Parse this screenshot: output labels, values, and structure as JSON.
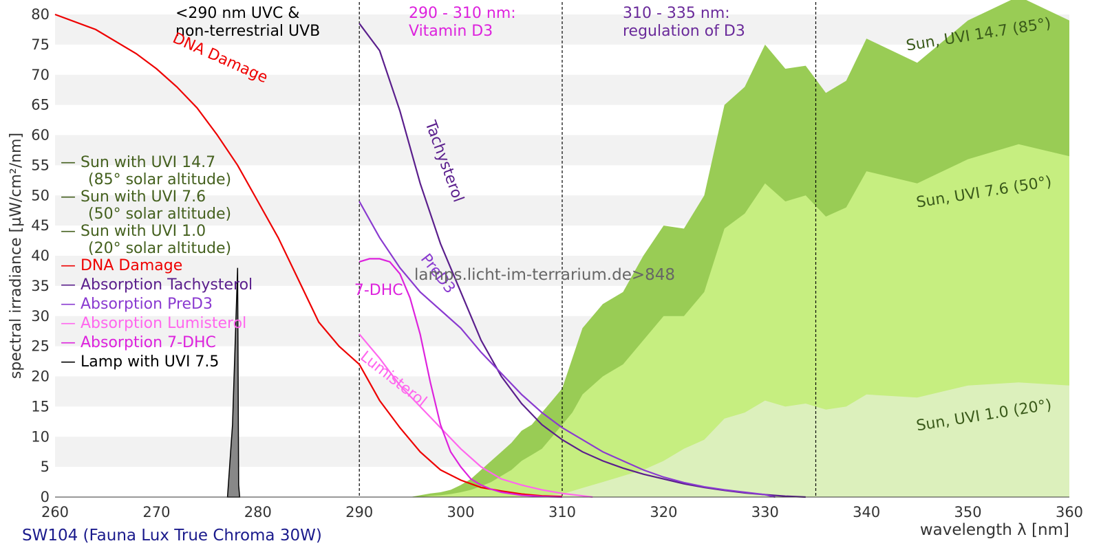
{
  "chart_data": {
    "type": "line",
    "title": "",
    "xlabel": "wavelength λ [nm]",
    "ylabel": "spectral irradiance [µW/cm²/nm]",
    "xlim": [
      260,
      360
    ],
    "ylim": [
      0,
      80
    ],
    "x_ticks": [
      "260",
      "270",
      "280",
      "290",
      "300",
      "310",
      "320",
      "330",
      "340",
      "350",
      "360"
    ],
    "y_ticks": [
      "0",
      "5",
      "10",
      "15",
      "20",
      "25",
      "30",
      "35",
      "40",
      "45",
      "50",
      "55",
      "60",
      "65",
      "70",
      "75",
      "80"
    ],
    "grid": "horizontal alternating bands",
    "lamp_name": "SW104 (Fauna Lux True Chroma 30W)",
    "watermark": "lamps.licht-im-terrarium.de>848",
    "zones": [
      {
        "x": 290,
        "label_line1": "<290 nm UVC &",
        "label_line2": "non-terrestrial UVB",
        "color": "#000000"
      },
      {
        "x": 310,
        "label_line1": "290 - 310 nm:",
        "label_line2": "Vitamin D3",
        "color": "#dd22dd"
      },
      {
        "x": 335,
        "label_line1": "310 - 335 nm:",
        "label_line2": "regulation of D3",
        "color": "#6a2a9a"
      }
    ],
    "legend": [
      {
        "line1": "— Sun with UVI 14.7",
        "line2": "(85° solar altitude)",
        "color": "#44601e"
      },
      {
        "line1": "— Sun with UVI 7.6",
        "line2": "(50° solar altitude)",
        "color": "#44601e"
      },
      {
        "line1": "— Sun with UVI 1.0",
        "line2": "(20° solar altitude)",
        "color": "#44601e"
      },
      {
        "line1": "— DNA Damage",
        "line2": "",
        "color": "#ee0000"
      },
      {
        "line1": "— Absorption Tachysterol",
        "line2": "",
        "color": "#5a1e8c"
      },
      {
        "line1": "— Absorption PreD3",
        "line2": "",
        "color": "#8a3ad0"
      },
      {
        "line1": "— Absorption Lumisterol",
        "line2": "",
        "color": "#ff66ee"
      },
      {
        "line1": "— Absorption 7-DHC",
        "line2": "",
        "color": "#dd22dd"
      },
      {
        "line1": "— Lamp with UVI 7.5",
        "line2": "",
        "color": "#000000"
      }
    ],
    "series": [
      {
        "name": "Sun, UVI 14.7 (85°)",
        "kind": "area",
        "color": "#99cc55",
        "label_x": 344,
        "label_y": 74,
        "x": [
          293,
          294,
          295,
          296,
          297,
          298,
          299,
          300,
          301,
          302,
          303,
          304,
          305,
          306,
          307,
          308,
          309,
          310,
          311,
          312,
          314,
          316,
          318,
          320,
          322,
          324,
          326,
          328,
          330,
          332,
          334,
          336,
          338,
          340,
          345,
          350,
          355,
          360
        ],
        "values": [
          0,
          0,
          0,
          0.3,
          0.6,
          0.8,
          1.2,
          2,
          3,
          4.5,
          6,
          7.5,
          9,
          11,
          12,
          14,
          16,
          18,
          23,
          28,
          32,
          34,
          40,
          45,
          44.5,
          50,
          65,
          68,
          75,
          71,
          71.5,
          67,
          69,
          76,
          72,
          79,
          83,
          79
        ]
      },
      {
        "name": "Sun, UVI 7.6 (50°)",
        "kind": "area",
        "color": "#c6ee80",
        "label_x": 345,
        "label_y": 48,
        "x": [
          296,
          297,
          298,
          299,
          300,
          301,
          302,
          303,
          304,
          305,
          306,
          307,
          308,
          309,
          310,
          311,
          312,
          314,
          316,
          318,
          320,
          322,
          324,
          326,
          328,
          330,
          332,
          334,
          336,
          338,
          340,
          345,
          350,
          355,
          360
        ],
        "values": [
          0,
          0.2,
          0.3,
          0.5,
          0.8,
          1.2,
          1.8,
          2.5,
          3.5,
          4.5,
          6,
          7,
          8,
          10,
          12,
          14,
          17,
          20,
          22,
          26,
          30,
          30,
          34,
          44.5,
          47,
          52,
          49,
          50,
          46.5,
          48,
          54,
          52,
          56,
          58.5,
          56.5
        ]
      },
      {
        "name": "Sun, UVI 1.0 (20°)",
        "kind": "area",
        "color": "#dcf0bc",
        "label_x": 345,
        "label_y": 11,
        "x": [
          304,
          306,
          308,
          310,
          312,
          314,
          316,
          318,
          320,
          322,
          324,
          326,
          328,
          330,
          332,
          334,
          336,
          338,
          340,
          345,
          350,
          355,
          360
        ],
        "values": [
          0,
          0.1,
          0.2,
          0.5,
          1.5,
          2.5,
          3.5,
          4.5,
          6,
          8,
          9.5,
          13,
          14,
          16,
          15,
          15.5,
          14.5,
          15,
          17,
          16.5,
          18.5,
          19,
          18.5
        ]
      },
      {
        "name": "DNA Damage",
        "kind": "line",
        "color": "#ee0000",
        "label": "DNA Damage",
        "label_x": 271.5,
        "label_y": 75.5,
        "label_angle": 24,
        "x": [
          260,
          264,
          268,
          270,
          272,
          274,
          276,
          278,
          280,
          282,
          284,
          286,
          288,
          290,
          292,
          294,
          296,
          298,
          300,
          302,
          304,
          306,
          308,
          310
        ],
        "values": [
          80,
          77.5,
          73.5,
          71,
          68,
          64.5,
          60,
          55,
          49,
          43,
          36,
          29,
          25,
          22,
          16,
          11.5,
          7.5,
          4.5,
          2.8,
          1.6,
          1,
          0.5,
          0.2,
          0.1
        ]
      },
      {
        "name": "Absorption Tachysterol",
        "kind": "line",
        "color": "#5a1e8c",
        "label": "Tachysterol",
        "label_x": 296.5,
        "label_y": 62,
        "label_angle": 70,
        "x": [
          290,
          292,
          294,
          296,
          298,
          300,
          302,
          304,
          306,
          308,
          310,
          312,
          314,
          316,
          318,
          320,
          322,
          324,
          326,
          328,
          330,
          332,
          334
        ],
        "values": [
          78.5,
          74,
          64,
          52,
          42,
          34,
          26,
          20,
          15.5,
          12,
          9.5,
          7.5,
          6,
          4.8,
          3.8,
          3,
          2.2,
          1.6,
          1.1,
          0.7,
          0.4,
          0.15,
          0
        ]
      },
      {
        "name": "Absorption PreD3",
        "kind": "line",
        "color": "#8a3ad0",
        "label": "PreD3",
        "label_x": 296,
        "label_y": 39.5,
        "label_angle": 52,
        "x": [
          290,
          292,
          294,
          296,
          298,
          300,
          302,
          304,
          306,
          308,
          310,
          312,
          314,
          316,
          318,
          320,
          322,
          324,
          326,
          328,
          330,
          331
        ],
        "values": [
          49,
          43,
          38,
          34,
          31,
          28,
          24,
          20.5,
          17,
          14,
          11.5,
          9.5,
          7.5,
          6,
          4.5,
          3.3,
          2.4,
          1.7,
          1.2,
          0.8,
          0.4,
          0
        ]
      },
      {
        "name": "Absorption Lumisterol",
        "kind": "line",
        "color": "#ff66ee",
        "label": "Lumisterol",
        "label_x": 290,
        "label_y": 23,
        "label_angle": 38,
        "x": [
          290,
          292,
          294,
          296,
          298,
          300,
          302,
          304,
          306,
          308,
          310,
          312,
          313
        ],
        "values": [
          27,
          23,
          18.5,
          15,
          11.5,
          8,
          5,
          3,
          2,
          1.2,
          0.6,
          0.2,
          0
        ]
      },
      {
        "name": "Absorption 7-DHC",
        "kind": "line",
        "color": "#dd22dd",
        "label": "7-DHC",
        "label_x": 289.5,
        "label_y": 33.5,
        "label_angle": 0,
        "x": [
          290,
          291,
          292,
          293,
          294,
          295,
          296,
          297,
          298,
          299,
          300,
          301,
          302,
          303,
          304,
          306,
          308,
          310
        ],
        "values": [
          39,
          39.5,
          39.5,
          39,
          37,
          33,
          27,
          19,
          12,
          7.5,
          5,
          3,
          2,
          1.3,
          0.8,
          0.3,
          0.1,
          0
        ]
      },
      {
        "name": "Lamp with UVI 7.5",
        "kind": "area",
        "color": "#888888",
        "x": [
          277,
          277.5,
          278,
          278.1,
          278.2
        ],
        "values": [
          0,
          12,
          38,
          2,
          0
        ]
      }
    ]
  }
}
